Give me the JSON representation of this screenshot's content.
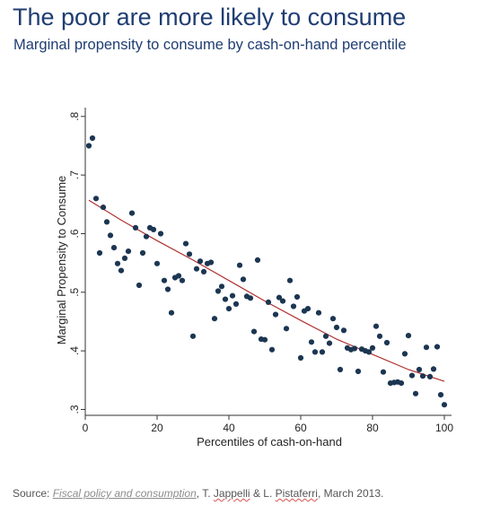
{
  "header": {
    "title": "The poor are more likely to consume",
    "subtitle": "Marginal propensity to consume by cash-on-hand percentile"
  },
  "source": {
    "prefix": "Source: ",
    "link_text": "Fiscal policy and consumption",
    "author1_prefix": ", T. ",
    "author1": "Jappelli",
    "between": " & L. ",
    "author2": "Pistaferri",
    "suffix": ", March 2013."
  },
  "chart_data": {
    "type": "scatter",
    "xlabel": "Percentiles of cash-on-hand",
    "ylabel": "Marginal Propensity to Consume",
    "xlim": [
      0,
      102
    ],
    "ylim": [
      0.29,
      0.815
    ],
    "x_ticks": [
      0,
      20,
      40,
      60,
      80,
      100
    ],
    "x_tick_labels": [
      "0",
      "20",
      "40",
      "60",
      "80",
      "100"
    ],
    "y_ticks": [
      0.3,
      0.4,
      0.5,
      0.6,
      0.7,
      0.8
    ],
    "y_tick_labels": [
      ".3",
      ".4",
      ".5",
      ".6",
      ".7",
      ".8"
    ],
    "grid": false,
    "marker_color": "#1c3652",
    "fit_color": "#b03030",
    "points": [
      [
        1,
        0.75
      ],
      [
        2,
        0.763
      ],
      [
        3,
        0.66
      ],
      [
        4,
        0.567
      ],
      [
        5,
        0.645
      ],
      [
        6,
        0.62
      ],
      [
        7,
        0.597
      ],
      [
        8,
        0.576
      ],
      [
        9,
        0.549
      ],
      [
        10,
        0.537
      ],
      [
        11,
        0.558
      ],
      [
        12,
        0.57
      ],
      [
        13,
        0.635
      ],
      [
        14,
        0.61
      ],
      [
        15,
        0.512
      ],
      [
        16,
        0.567
      ],
      [
        17,
        0.595
      ],
      [
        18,
        0.61
      ],
      [
        19,
        0.607
      ],
      [
        20,
        0.549
      ],
      [
        21,
        0.6
      ],
      [
        22,
        0.52
      ],
      [
        23,
        0.505
      ],
      [
        24,
        0.465
      ],
      [
        25,
        0.525
      ],
      [
        26,
        0.528
      ],
      [
        27,
        0.52
      ],
      [
        28,
        0.583
      ],
      [
        29,
        0.565
      ],
      [
        30,
        0.425
      ],
      [
        31,
        0.54
      ],
      [
        32,
        0.553
      ],
      [
        33,
        0.535
      ],
      [
        34,
        0.549
      ],
      [
        35,
        0.551
      ],
      [
        36,
        0.455
      ],
      [
        37,
        0.502
      ],
      [
        38,
        0.51
      ],
      [
        39,
        0.488
      ],
      [
        40,
        0.472
      ],
      [
        41,
        0.494
      ],
      [
        42,
        0.48
      ],
      [
        43,
        0.546
      ],
      [
        44,
        0.522
      ],
      [
        45,
        0.493
      ],
      [
        46,
        0.49
      ],
      [
        47,
        0.433
      ],
      [
        48,
        0.555
      ],
      [
        49,
        0.42
      ],
      [
        50,
        0.419
      ],
      [
        51,
        0.483
      ],
      [
        52,
        0.402
      ],
      [
        53,
        0.462
      ],
      [
        54,
        0.491
      ],
      [
        55,
        0.485
      ],
      [
        56,
        0.438
      ],
      [
        57,
        0.52
      ],
      [
        58,
        0.476
      ],
      [
        59,
        0.492
      ],
      [
        60,
        0.388
      ],
      [
        61,
        0.468
      ],
      [
        62,
        0.472
      ],
      [
        63,
        0.415
      ],
      [
        64,
        0.398
      ],
      [
        65,
        0.465
      ],
      [
        66,
        0.398
      ],
      [
        67,
        0.425
      ],
      [
        68,
        0.413
      ],
      [
        69,
        0.455
      ],
      [
        70,
        0.44
      ],
      [
        71,
        0.368
      ],
      [
        72,
        0.435
      ],
      [
        73,
        0.405
      ],
      [
        74,
        0.402
      ],
      [
        75,
        0.404
      ],
      [
        76,
        0.365
      ],
      [
        77,
        0.403
      ],
      [
        78,
        0.4
      ],
      [
        79,
        0.398
      ],
      [
        80,
        0.405
      ],
      [
        81,
        0.442
      ],
      [
        82,
        0.425
      ],
      [
        83,
        0.364
      ],
      [
        84,
        0.414
      ],
      [
        85,
        0.345
      ],
      [
        86,
        0.346
      ],
      [
        87,
        0.347
      ],
      [
        88,
        0.345
      ],
      [
        89,
        0.395
      ],
      [
        90,
        0.426
      ],
      [
        91,
        0.358
      ],
      [
        92,
        0.327
      ],
      [
        93,
        0.368
      ],
      [
        94,
        0.357
      ],
      [
        95,
        0.406
      ],
      [
        96,
        0.356
      ],
      [
        97,
        0.369
      ],
      [
        98,
        0.407
      ],
      [
        99,
        0.325
      ],
      [
        100,
        0.308
      ]
    ],
    "fit_line": [
      [
        1,
        0.657
      ],
      [
        10,
        0.623
      ],
      [
        20,
        0.588
      ],
      [
        30,
        0.555
      ],
      [
        40,
        0.52
      ],
      [
        50,
        0.485
      ],
      [
        60,
        0.452
      ],
      [
        70,
        0.42
      ],
      [
        80,
        0.394
      ],
      [
        90,
        0.368
      ],
      [
        100,
        0.348
      ]
    ]
  }
}
